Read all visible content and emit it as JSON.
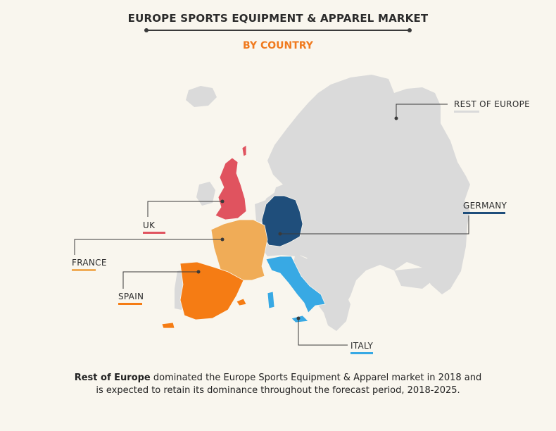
{
  "header": {
    "title": "EUROPE SPORTS EQUIPMENT & APPAREL MARKET",
    "subtitle": "BY COUNTRY",
    "subtitle_color": "#f07a1e"
  },
  "map": {
    "base_color": "#dadada",
    "regions": [
      {
        "id": "rest-of-europe",
        "label": "REST OF EUROPE",
        "color": "#dadada"
      },
      {
        "id": "germany",
        "label": "GERMANY",
        "color": "#1f4e7b"
      },
      {
        "id": "uk",
        "label": "UK",
        "color": "#e0535f"
      },
      {
        "id": "france",
        "label": "FRANCE",
        "color": "#f0ac57"
      },
      {
        "id": "spain",
        "label": "SPAIN",
        "color": "#f57c14"
      },
      {
        "id": "italy",
        "label": "ITALY",
        "color": "#38a9e4"
      }
    ]
  },
  "footer": {
    "bold": "Rest of Europe",
    "text": " dominated the Europe Sports Equipment & Apparel  market in 2018 and is expected to retain its dominance throughout the forecast period, 2018-2025."
  }
}
